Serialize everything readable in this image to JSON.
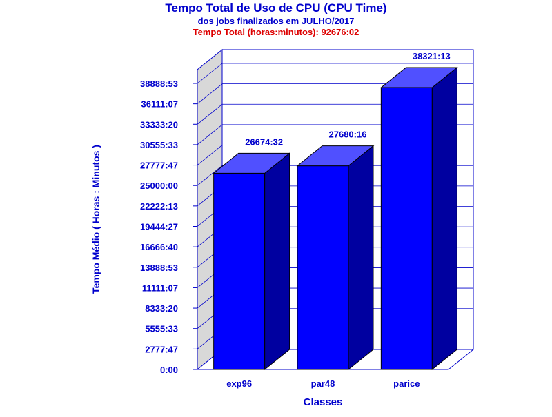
{
  "chart_data": {
    "type": "bar",
    "title": "Tempo Total de Uso de CPU (CPU Time)",
    "subtitle": "dos jobs finalizados em JULHO/2017",
    "subtitle2": "Tempo Total (horas:minutos): 92676:02",
    "xlabel": "Classes",
    "ylabel": "Tempo Médio ( Horas : Minutos )",
    "categories": [
      "exp96",
      "par48",
      "parice"
    ],
    "values": [
      26674.53,
      27680.27,
      38321.22
    ],
    "value_labels": [
      "26674:32",
      "27680:16",
      "38321:13"
    ],
    "yticks": [
      0,
      2777.78,
      5555.55,
      8333.33,
      11111.12,
      13888.88,
      16666.67,
      19444.45,
      22222.22,
      25000,
      27777.78,
      30555.55,
      33333.33,
      36111.12,
      38888.88
    ],
    "ytick_labels": [
      "0:00",
      "2777:47",
      "5555:33",
      "8333:20",
      "11111:07",
      "13888:53",
      "16666:40",
      "19444:27",
      "22222:13",
      "25000:00",
      "27777:47",
      "30555:33",
      "33333:20",
      "36111:07",
      "38888:53"
    ],
    "ylim": [
      0,
      38888.88
    ],
    "grid": true,
    "colors": {
      "bar_front": "#0000ff",
      "bar_top": "#5050ff",
      "bar_side": "#0000a0",
      "axis": "#0000cc",
      "text": "#0000cc",
      "highlight": "#dd0000",
      "left_wall": "#d8d8d8"
    }
  }
}
